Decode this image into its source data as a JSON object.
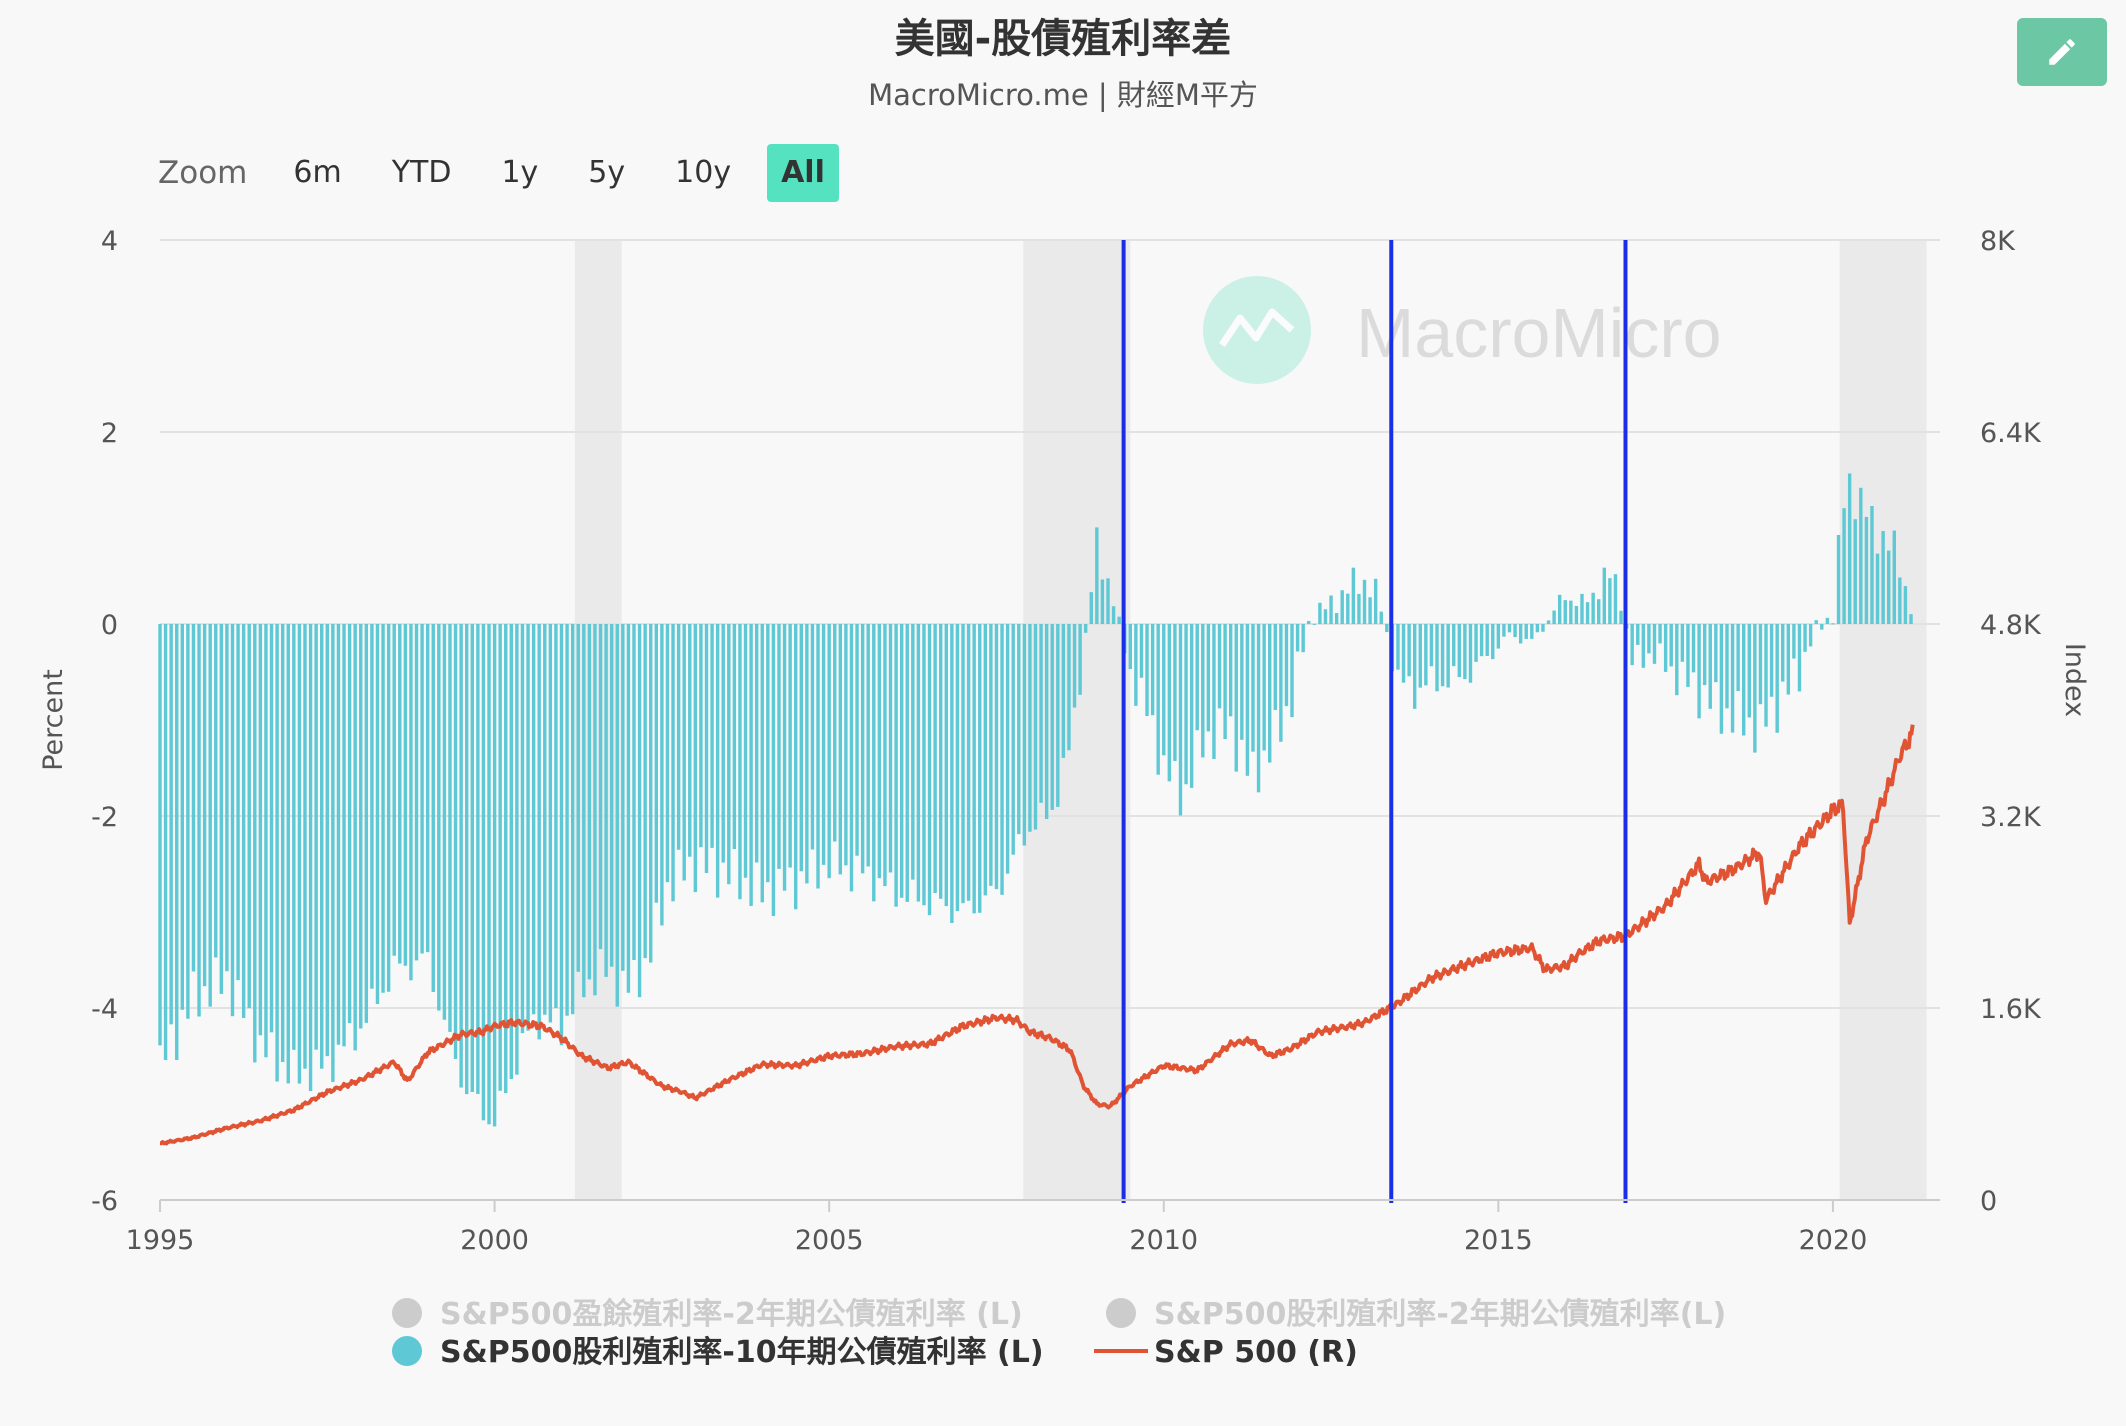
{
  "header": {
    "title": "美國-股債殖利率差",
    "subtitle": "MacroMicro.me | 財經M平方",
    "edit_icon": "pencil-icon"
  },
  "zoom": {
    "label": "Zoom",
    "buttons": [
      "6m",
      "YTD",
      "1y",
      "5y",
      "10y",
      "All"
    ],
    "active": "All"
  },
  "watermark": {
    "text": "MacroMicro"
  },
  "colors": {
    "bars": "#5ec8d4",
    "line": "#e05434",
    "vlines": "#1a2ee8",
    "recession": "#eaeaea",
    "grid": "#e2e2e2",
    "legend_disabled": "#cccccc"
  },
  "chart_data": {
    "type": "bar+line",
    "ylabel_left": "Percent",
    "ylabel_right": "Index",
    "y_left": {
      "min": -6,
      "max": 4,
      "ticks": [
        "4",
        "2",
        "0",
        "-2",
        "-4",
        "-6"
      ]
    },
    "y_right": {
      "min": 0,
      "max": 8000,
      "ticks": [
        "8K",
        "6.4K",
        "4.8K",
        "3.2K",
        "1.6K",
        "0"
      ]
    },
    "x_axis": {
      "min": 1995,
      "max": 2021.6,
      "ticks": [
        "1995",
        "2000",
        "2005",
        "2010",
        "2015",
        "2020"
      ]
    },
    "recession_shading": [
      [
        2001.2,
        2001.9
      ],
      [
        2007.9,
        2009.5
      ],
      [
        2020.1,
        2021.4
      ]
    ],
    "vertical_markers": [
      2009.4,
      2013.4,
      2016.9
    ],
    "legend": [
      {
        "label": "S&P500盈餘殖利率-2年期公債殖利率 (L)",
        "visible": false
      },
      {
        "label": "S&P500股利殖利率-2年期公債殖利率(L)",
        "visible": false
      },
      {
        "label": "S&P500股利殖利率-10年期公債殖利率 (L)",
        "visible": true
      },
      {
        "label": "S&P 500 (R)",
        "visible": true
      }
    ],
    "series": [
      {
        "name": "S&P500股利殖利率-10年期公債殖利率 (L)",
        "type": "bar",
        "x": [
          1995.0,
          1995.5,
          1996.0,
          1996.5,
          1997.0,
          1997.5,
          1998.0,
          1998.5,
          1999.0,
          1999.3,
          1999.6,
          2000.0,
          2000.3,
          2000.6,
          2001.0,
          2001.3,
          2001.6,
          2002.0,
          2002.3,
          2002.6,
          2003.0,
          2003.5,
          2004.0,
          2004.5,
          2005.0,
          2005.5,
          2006.0,
          2006.5,
          2007.0,
          2007.5,
          2008.0,
          2008.3,
          2008.6,
          2008.8,
          2009.0,
          2009.2,
          2009.5,
          2009.8,
          2010.0,
          2010.3,
          2010.6,
          2011.0,
          2011.3,
          2011.6,
          2011.9,
          2012.2,
          2012.5,
          2012.8,
          2013.0,
          2013.2,
          2013.5,
          2013.8,
          2014.0,
          2014.3,
          2014.6,
          2014.9,
          2015.2,
          2015.5,
          2015.8,
          2016.0,
          2016.3,
          2016.6,
          2016.8,
          2017.0,
          2017.3,
          2017.6,
          2018.0,
          2018.3,
          2018.6,
          2018.9,
          2019.2,
          2019.5,
          2019.7,
          2020.0,
          2020.2,
          2020.4,
          2020.6,
          2020.8,
          2021.0,
          2021.2
        ],
        "values": [
          -4.6,
          -3.9,
          -3.7,
          -4.4,
          -4.7,
          -4.6,
          -4.2,
          -3.6,
          -3.5,
          -4.3,
          -4.9,
          -5.2,
          -4.6,
          -4.1,
          -4.2,
          -3.8,
          -3.6,
          -3.8,
          -3.5,
          -2.7,
          -2.5,
          -2.6,
          -2.8,
          -2.7,
          -2.5,
          -2.6,
          -2.8,
          -2.9,
          -3.0,
          -2.8,
          -2.1,
          -2.0,
          -1.3,
          -0.3,
          0.8,
          0.4,
          -0.5,
          -1.0,
          -1.5,
          -1.8,
          -1.2,
          -1.1,
          -1.6,
          -1.3,
          -0.8,
          0.1,
          0.2,
          0.4,
          0.45,
          0.3,
          -0.6,
          -0.7,
          -0.6,
          -0.6,
          -0.5,
          -0.3,
          -0.1,
          -0.2,
          0.1,
          0.3,
          0.2,
          0.5,
          0.4,
          -0.4,
          -0.3,
          -0.5,
          -0.7,
          -0.9,
          -1.0,
          -1.1,
          -0.8,
          -0.5,
          -0.1,
          0.1,
          1.5,
          1.3,
          1.0,
          0.9,
          0.6,
          0.1
        ]
      },
      {
        "name": "S&P 500 (R)",
        "type": "line",
        "x": [
          1995.0,
          1995.5,
          1996.0,
          1996.5,
          1997.0,
          1997.5,
          1998.0,
          1998.5,
          1998.7,
          1999.0,
          1999.5,
          1999.8,
          2000.0,
          2000.3,
          2000.7,
          2001.0,
          2001.3,
          2001.7,
          2002.0,
          2002.5,
          2002.8,
          2003.0,
          2003.5,
          2004.0,
          2004.5,
          2005.0,
          2005.5,
          2006.0,
          2006.5,
          2007.0,
          2007.5,
          2007.8,
          2008.0,
          2008.3,
          2008.6,
          2008.8,
          2009.0,
          2009.2,
          2009.5,
          2010.0,
          2010.5,
          2011.0,
          2011.3,
          2011.6,
          2011.9,
          2012.3,
          2012.8,
          2013.0,
          2013.5,
          2014.0,
          2014.5,
          2015.0,
          2015.5,
          2015.7,
          2016.0,
          2016.2,
          2016.5,
          2016.9,
          2017.5,
          2018.0,
          2018.1,
          2018.5,
          2018.9,
          2019.0,
          2019.5,
          2020.0,
          2020.15,
          2020.25,
          2020.5,
          2020.8,
          2021.0,
          2021.2
        ],
        "values": [
          470,
          520,
          600,
          660,
          750,
          900,
          1000,
          1150,
          990,
          1230,
          1380,
          1400,
          1450,
          1480,
          1450,
          1350,
          1200,
          1100,
          1150,
          950,
          900,
          850,
          1000,
          1130,
          1120,
          1200,
          1220,
          1280,
          1300,
          1450,
          1520,
          1500,
          1400,
          1350,
          1250,
          950,
          800,
          780,
          950,
          1120,
          1080,
          1300,
          1330,
          1200,
          1260,
          1400,
          1450,
          1480,
          1640,
          1850,
          1960,
          2060,
          2100,
          1920,
          1950,
          2050,
          2160,
          2200,
          2450,
          2800,
          2650,
          2750,
          2900,
          2500,
          2950,
          3250,
          3300,
          2300,
          3000,
          3400,
          3700,
          3900
        ]
      }
    ]
  }
}
